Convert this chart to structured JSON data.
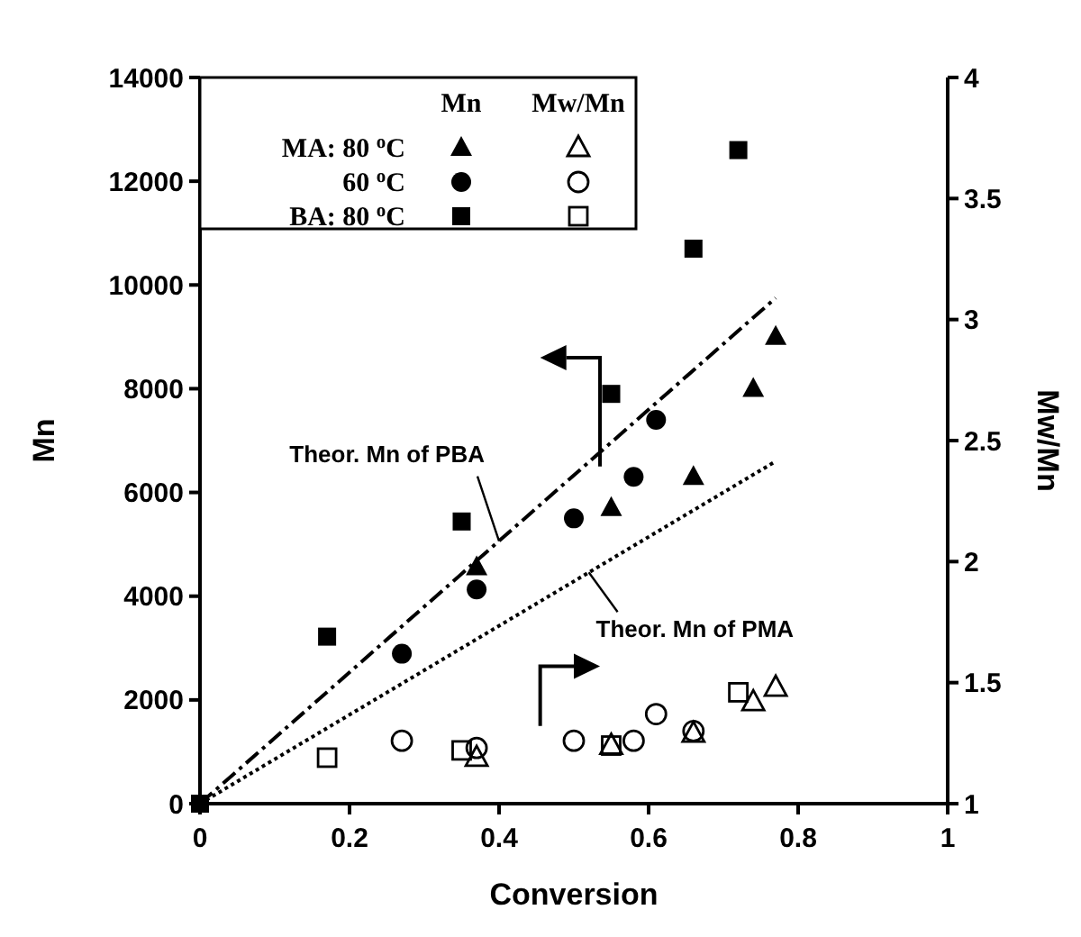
{
  "chart_data": {
    "type": "scatter",
    "xlabel": "Conversion",
    "ylabel": "Mn",
    "y2label": "Mw/Mn",
    "xlim": [
      0,
      1
    ],
    "xticks": [
      0,
      0.2,
      0.4,
      0.6,
      0.8,
      1
    ],
    "ylim": [
      0,
      14000
    ],
    "yticks": [
      0,
      2000,
      4000,
      6000,
      8000,
      10000,
      12000,
      14000
    ],
    "y2lim": [
      1,
      4
    ],
    "y2ticks": [
      1,
      1.5,
      2,
      2.5,
      3,
      3.5,
      4
    ],
    "legend": "top left",
    "legend_title": "Mn",
    "series": [
      {
        "name": "MA: 80 $^{o}$C",
        "color": "#000000",
        "marker": "triangle",
        "x": [
          0.37,
          0.55,
          0.66,
          0.74,
          0.77
        ],
        "values": [
          4560,
          5700,
          6300,
          8000,
          9000
        ]
      },
      {
        "name": "60 $^{o}$C",
        "color": "#000000",
        "marker": "circle",
        "x": [
          0.27,
          0.37,
          0.5,
          0.58,
          0.61
        ],
        "values": [
          2890,
          4130,
          5500,
          6300,
          7400
        ]
      },
      {
        "name": "BA: 80 $^{o}$C",
        "color": "#000000",
        "marker": "square",
        "x": [
          0,
          0.17,
          0.35,
          0.55,
          0.66,
          0.72
        ],
        "values": [
          0,
          3220,
          5440,
          7900,
          10700,
          12600
        ]
      },
      {
        "color": "#000000",
        "marker": "triangle",
        "axis": "y2",
        "x": [
          0.37,
          0.55,
          0.66,
          0.74,
          0.77
        ],
        "values": [
          1.19,
          1.24,
          1.29,
          1.42,
          1.48
        ]
      },
      {
        "color": "#000000",
        "marker": "circle",
        "axis": "y2",
        "x": [
          0.27,
          0.37,
          0.5,
          0.58,
          0.61,
          0.66
        ],
        "values": [
          1.26,
          1.23,
          1.26,
          1.26,
          1.37,
          1.3
        ]
      },
      {
        "color": "#000000",
        "marker": "square",
        "axis": "y2",
        "x": [
          0.17,
          0.35,
          0.55,
          0.72
        ],
        "values": [
          1.19,
          1.22,
          1.24,
          1.46
        ]
      },
      {
        "type": "line",
        "color": "#000000",
        "line_style": "dashed",
        "marker": "none",
        "x": [
          0,
          0.77
        ],
        "values": [
          0,
          9750
        ]
      },
      {
        "type": "line",
        "color": "#000000",
        "line_style": "dotted",
        "marker": "none",
        "x": [
          0,
          0.77
        ],
        "values": [
          0,
          6600
        ]
      }
    ],
    "annotations": [
      "Mw/Mn",
      {
        "text": "Theor. Mn of PBA",
        "x": 0.4,
        "y": 5060
      },
      {
        "text": "Theor. Mn of PMA",
        "x": 0.52,
        "y": 4460
      }
    ]
  }
}
